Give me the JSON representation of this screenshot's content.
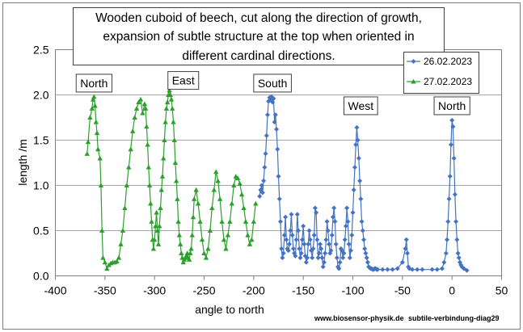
{
  "chart_data": {
    "type": "line",
    "title_lines": [
      "Wooden cuboid of beech, cut along the direction of growth,",
      "expansion of subtle structure at the top when oriented in",
      "different cardinal directions."
    ],
    "xlabel": "angle to north",
    "ylabel": "length /m",
    "xlim": [
      -400,
      50
    ],
    "ylim": [
      0,
      2.5
    ],
    "x_ticks": [
      "-400",
      "-350",
      "-300",
      "-250",
      "-200",
      "-150",
      "-100",
      "-50",
      "0",
      "50"
    ],
    "y_ticks": [
      "0.0",
      "0.5",
      "1.0",
      "1.5",
      "2.0",
      "2.5"
    ],
    "grid": "horizontal",
    "legend_position": "top-right",
    "annotations": [
      {
        "text": "North",
        "x": -361,
        "y": 2.13
      },
      {
        "text": "East",
        "x": -271,
        "y": 2.16
      },
      {
        "text": "South",
        "x": -181,
        "y": 2.13
      },
      {
        "text": "West",
        "x": -92,
        "y": 1.88
      },
      {
        "text": "North",
        "x": 0,
        "y": 1.88
      }
    ],
    "footer_left": "www.biosensor-physik.de",
    "footer_right": "subtile-verbindung-diag29",
    "series": [
      {
        "name": "26.02.2023",
        "color": "#4472C4",
        "marker": "diamond",
        "x": [
          -194,
          -193,
          -192,
          -191,
          -190,
          -189,
          -188,
          -187,
          -186,
          -185,
          -184,
          -183,
          -182,
          -181,
          -180,
          -179,
          -178,
          -177,
          -176,
          -175,
          -174,
          -173,
          -172,
          -171,
          -170,
          -169,
          -168,
          -167,
          -166,
          -165,
          -164,
          -163,
          -162,
          -161,
          -160,
          -159,
          -158,
          -157,
          -156,
          -155,
          -154,
          -153,
          -152,
          -151,
          -150,
          -149,
          -148,
          -147,
          -146,
          -145,
          -144,
          -143,
          -142,
          -141,
          -140,
          -139,
          -138,
          -137,
          -136,
          -135,
          -134,
          -133,
          -132,
          -131,
          -130,
          -129,
          -128,
          -127,
          -126,
          -125,
          -124,
          -123,
          -122,
          -121,
          -120,
          -119,
          -118,
          -117,
          -116,
          -115,
          -114,
          -113,
          -112,
          -111,
          -110,
          -109,
          -108,
          -107,
          -106,
          -105,
          -104,
          -103,
          -102,
          -101,
          -100,
          -99,
          -98,
          -97,
          -96,
          -95,
          -94,
          -93,
          -92,
          -91,
          -90,
          -89,
          -88,
          -87,
          -86,
          -85,
          -84,
          -83,
          -82,
          -81,
          -80,
          -79,
          -78,
          -77,
          -76,
          -75,
          -70,
          -65,
          -60,
          -55,
          -50,
          -47,
          -46,
          -45,
          -44,
          -43,
          -40,
          -35,
          -30,
          -20,
          -15,
          -10,
          -8,
          -6,
          -5,
          -4,
          -3,
          -2,
          -1,
          0,
          1,
          2,
          3,
          4,
          5,
          6,
          7,
          8,
          9,
          10,
          12,
          15
        ],
        "y": [
          0.88,
          0.95,
          1.0,
          0.92,
          1.05,
          1.2,
          1.35,
          1.55,
          1.78,
          1.93,
          1.97,
          1.95,
          1.98,
          1.92,
          1.96,
          1.7,
          1.78,
          1.62,
          1.4,
          1.1,
          0.85,
          0.6,
          0.3,
          0.2,
          0.25,
          0.45,
          0.65,
          0.4,
          0.3,
          0.28,
          0.35,
          0.5,
          0.68,
          0.45,
          0.3,
          0.25,
          0.22,
          0.4,
          0.68,
          0.5,
          0.3,
          0.2,
          0.25,
          0.4,
          0.55,
          0.35,
          0.22,
          0.15,
          0.2,
          0.35,
          0.5,
          0.4,
          0.28,
          0.2,
          0.3,
          0.45,
          0.75,
          0.7,
          0.4,
          0.2,
          0.25,
          0.35,
          0.3,
          0.2,
          0.1,
          0.15,
          0.25,
          0.4,
          0.6,
          0.5,
          0.35,
          0.25,
          0.28,
          0.45,
          0.65,
          0.75,
          0.6,
          0.35,
          0.2,
          0.1,
          0.08,
          0.15,
          0.3,
          0.28,
          0.2,
          0.25,
          0.4,
          0.55,
          0.75,
          0.6,
          0.35,
          0.2,
          0.28,
          0.45,
          0.7,
          0.95,
          1.2,
          1.45,
          1.64,
          1.5,
          1.3,
          1.05,
          0.85,
          0.6,
          0.5,
          0.4,
          0.3,
          0.25,
          0.2,
          0.15,
          0.1,
          0.09,
          0.08,
          0.08,
          0.07,
          0.07,
          0.08,
          0.08,
          0.07,
          0.07,
          0.07,
          0.07,
          0.07,
          0.08,
          0.15,
          0.3,
          0.4,
          0.25,
          0.1,
          0.08,
          0.07,
          0.07,
          0.07,
          0.07,
          0.07,
          0.08,
          0.15,
          0.25,
          0.4,
          0.6,
          0.85,
          1.1,
          1.45,
          1.72,
          1.65,
          1.3,
          0.9,
          0.6,
          0.4,
          0.25,
          0.2,
          0.15,
          0.12,
          0.1,
          0.08,
          0.06
        ]
      },
      {
        "name": "27.02.2023",
        "color": "#2CA02C",
        "marker": "triangle",
        "x": [
          -368,
          -367,
          -365,
          -363,
          -362,
          -361,
          -360,
          -359,
          -358,
          -357,
          -355,
          -354,
          -353,
          -352,
          -350,
          -348,
          -346,
          -344,
          -342,
          -340,
          -338,
          -336,
          -334,
          -332,
          -330,
          -328,
          -326,
          -324,
          -322,
          -320,
          -318,
          -316,
          -314,
          -312,
          -310,
          -309,
          -308,
          -307,
          -306,
          -305,
          -304,
          -303,
          -302,
          -301,
          -300,
          -299,
          -298,
          -297,
          -296,
          -295,
          -294,
          -293,
          -292,
          -291,
          -290,
          -289,
          -288,
          -287,
          -286,
          -285,
          -284,
          -283,
          -282,
          -281,
          -280,
          -279,
          -278,
          -277,
          -276,
          -275,
          -274,
          -273,
          -272,
          -271,
          -270,
          -269,
          -268,
          -267,
          -266,
          -265,
          -264,
          -263,
          -262,
          -261,
          -260,
          -258,
          -256,
          -254,
          -252,
          -250,
          -248,
          -246,
          -244,
          -242,
          -240,
          -238,
          -236,
          -234,
          -232,
          -230,
          -228,
          -226,
          -224,
          -222,
          -220,
          -218,
          -216,
          -214,
          -212,
          -210,
          -208,
          -206,
          -204,
          -202,
          -200,
          -198
        ],
        "y": [
          1.35,
          1.48,
          1.75,
          1.85,
          1.95,
          1.98,
          1.88,
          1.7,
          1.58,
          1.4,
          1.3,
          1.0,
          0.5,
          0.2,
          0.15,
          0.08,
          0.12,
          0.14,
          0.15,
          0.15,
          0.16,
          0.2,
          0.35,
          0.5,
          0.75,
          1.0,
          1.2,
          1.4,
          1.6,
          1.75,
          1.85,
          1.92,
          1.95,
          1.8,
          1.9,
          1.85,
          1.65,
          1.45,
          1.2,
          1.0,
          0.8,
          0.6,
          0.4,
          0.3,
          0.4,
          0.55,
          0.7,
          0.5,
          0.35,
          0.55,
          0.75,
          0.95,
          1.1,
          1.3,
          1.5,
          1.7,
          1.85,
          1.92,
          2.0,
          2.05,
          2.0,
          1.95,
          1.85,
          1.7,
          1.5,
          1.25,
          1.05,
          0.85,
          0.6,
          0.45,
          0.35,
          0.25,
          0.2,
          0.15,
          0.18,
          0.2,
          0.22,
          0.25,
          0.2,
          0.18,
          0.25,
          0.3,
          0.45,
          0.65,
          0.85,
          0.95,
          0.8,
          0.6,
          0.4,
          0.25,
          0.2,
          0.3,
          0.5,
          0.75,
          0.95,
          1.15,
          1.05,
          0.85,
          0.6,
          0.4,
          0.3,
          0.45,
          0.6,
          0.8,
          1.0,
          1.1,
          1.08,
          1.02,
          0.9,
          0.75,
          0.6,
          0.45,
          0.35,
          0.4,
          0.6,
          0.8
        ]
      }
    ]
  }
}
